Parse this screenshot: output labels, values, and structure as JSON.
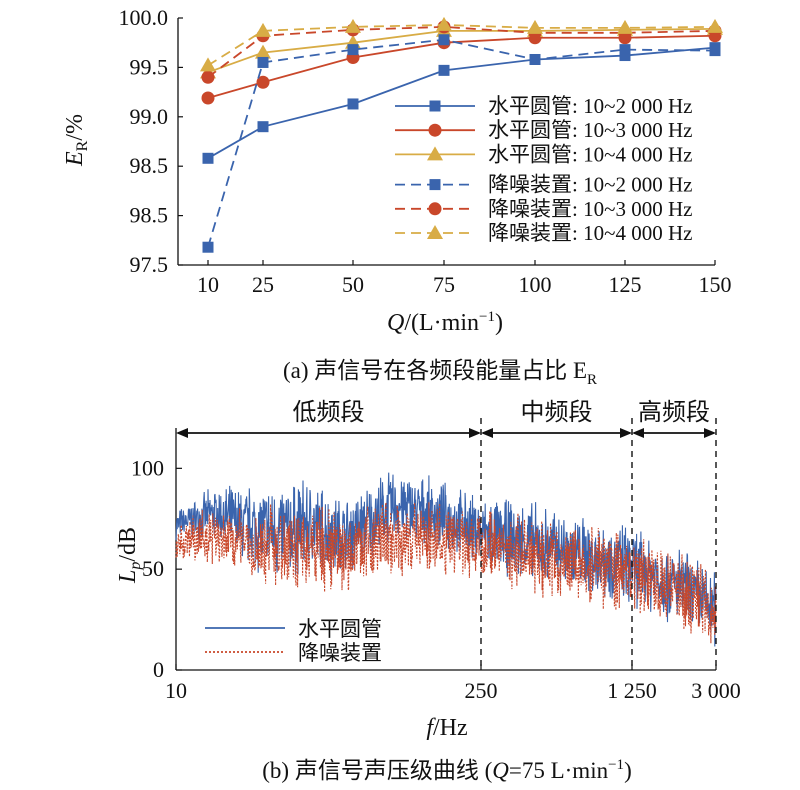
{
  "chart_data": [
    {
      "type": "line",
      "caption": "(a) 声信号在各频段能量占比 E",
      "caption_sub": "R",
      "xlabel_var": "Q",
      "xlabel_unit": "/(L·min",
      "xlabel_exp": "−1",
      "xlabel_close": ")",
      "ylabel_var": "E",
      "ylabel_sub": "R",
      "ylabel_unit": "/%",
      "categories": [
        "10",
        "25",
        "50",
        "75",
        "100",
        "125",
        "150"
      ],
      "y_ticks": [
        "97.5",
        "98.5",
        "98.5",
        "99.0",
        "99.5",
        "100.0"
      ],
      "ylim": [
        97.5,
        100.0
      ],
      "series": [
        {
          "name": "水平圆管: 10~2 000 Hz",
          "color": "#3a64ad",
          "marker": "square",
          "dash": false,
          "values": [
            98.58,
            98.9,
            99.13,
            99.47,
            99.58,
            99.62,
            99.7
          ]
        },
        {
          "name": "水平圆管: 10~3 000 Hz",
          "color": "#c9472a",
          "marker": "circle",
          "dash": false,
          "values": [
            99.19,
            99.35,
            99.6,
            99.75,
            99.8,
            99.8,
            99.82
          ]
        },
        {
          "name": "水平圆管: 10~4 000 Hz",
          "color": "#d8ac45",
          "marker": "triangle",
          "dash": false,
          "values": [
            99.45,
            99.65,
            99.75,
            99.87,
            99.87,
            99.88,
            99.89
          ]
        },
        {
          "name": "降噪装置: 10~2 000 Hz",
          "color": "#3a64ad",
          "marker": "square",
          "dash": true,
          "values": [
            97.68,
            99.55,
            99.68,
            99.78,
            99.58,
            99.68,
            99.67
          ]
        },
        {
          "name": "降噪装置: 10~3 000 Hz",
          "color": "#c9472a",
          "marker": "circle",
          "dash": true,
          "values": [
            99.4,
            99.82,
            99.88,
            99.91,
            99.85,
            99.85,
            99.87
          ]
        },
        {
          "name": "降噪装置: 10~4 000 Hz",
          "color": "#d8ac45",
          "marker": "triangle",
          "dash": true,
          "values": [
            99.52,
            99.87,
            99.91,
            99.93,
            99.9,
            99.9,
            99.91
          ]
        }
      ],
      "legend_position": "lower-right"
    },
    {
      "type": "line",
      "caption_prefix": "(b) 声信号声压级曲线 (",
      "caption_var": "Q",
      "caption_mid": "=75 L·min",
      "caption_exp": "−1",
      "caption_close": ")",
      "xlabel_var": "f",
      "xlabel_unit": "/Hz",
      "ylabel_var": "L",
      "ylabel_sub": "p",
      "ylabel_unit": "/dB",
      "x_scale": "log",
      "x_ticks": [
        {
          "value": 10,
          "label": "10"
        },
        {
          "value": 250,
          "label": "250"
        },
        {
          "value": 1250,
          "label": "1 250"
        },
        {
          "value": 3000,
          "label": "3 000"
        }
      ],
      "y_ticks": [
        "0",
        "50",
        "100"
      ],
      "ylim": [
        0,
        120
      ],
      "bands": [
        {
          "label": "低频段",
          "from": 10,
          "to": 250
        },
        {
          "label": "中频段",
          "from": 250,
          "to": 1250
        },
        {
          "label": "高频段",
          "from": 1250,
          "to": 3000
        }
      ],
      "band_dividers": [
        250,
        1250,
        3000
      ],
      "series": [
        {
          "name": "水平圆管",
          "color": "#3a64ad",
          "style": "solid",
          "envelope": {
            "f": [
              10,
              15,
              20,
              30,
              40,
              60,
              100,
              150,
              250,
              400,
              700,
              1250,
              2000,
              3000
            ],
            "center": [
              72,
              78,
              72,
              68,
              72,
              66,
              82,
              78,
              68,
              64,
              58,
              52,
              42,
              30
            ],
            "spread": [
              8,
              14,
              22,
              28,
              26,
              22,
              20,
              18,
              20,
              22,
              22,
              22,
              22,
              22
            ]
          }
        },
        {
          "name": "降噪装置",
          "color": "#c9472a",
          "style": "dotted",
          "envelope": {
            "f": [
              10,
              15,
              20,
              30,
              40,
              60,
              100,
              150,
              250,
              400,
              700,
              1250,
              2000,
              3000
            ],
            "center": [
              62,
              68,
              62,
              60,
              62,
              58,
              66,
              64,
              62,
              58,
              54,
              48,
              40,
              30
            ],
            "spread": [
              12,
              16,
              20,
              24,
              24,
              22,
              22,
              20,
              20,
              22,
              22,
              22,
              22,
              22
            ]
          }
        }
      ],
      "legend_position": "lower-left"
    }
  ]
}
